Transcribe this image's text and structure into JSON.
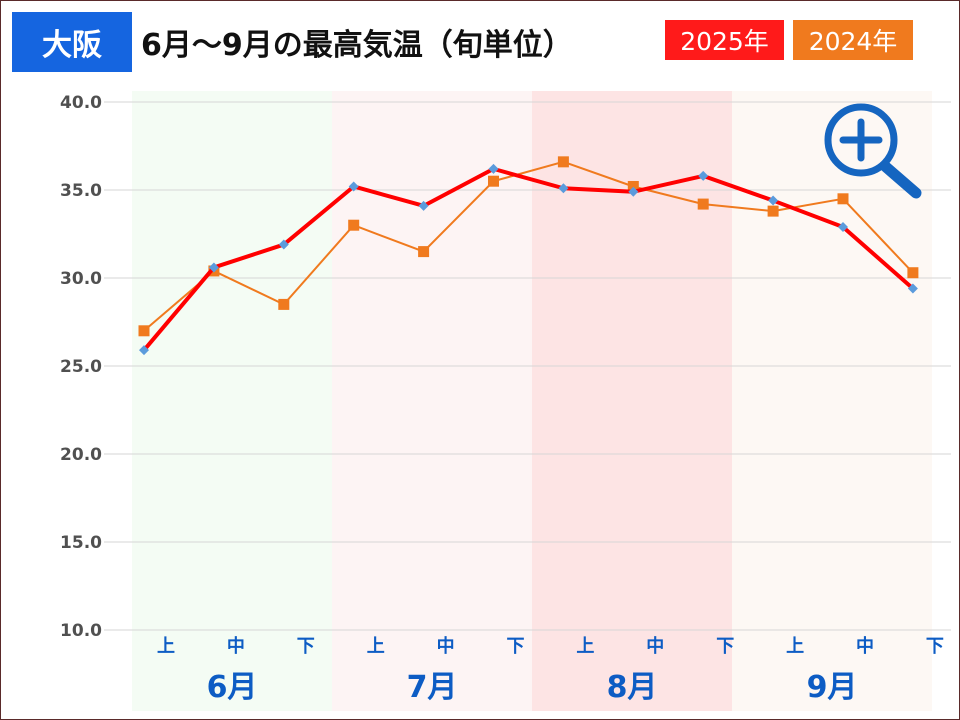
{
  "header": {
    "city": "大阪",
    "title": "6月〜9月の最高気温（旬単位）"
  },
  "colors": {
    "city_badge": "#1565e0",
    "series_2025": "#ff0000",
    "series_2025_marker": "#5b9bdc",
    "series_2024": "#f07a1e",
    "band_june": "#f4fcf4",
    "band_july": "#fdf4f4",
    "band_august": "#fde4e4",
    "band_september": "#fdf8f4",
    "axis_label": "#0d5cc4"
  },
  "icons": {
    "zoom": "zoom-in-magnifier-icon"
  },
  "chart_data": {
    "type": "line",
    "title": "6月〜9月の最高気温（旬単位）",
    "categories": [
      "上",
      "中",
      "下",
      "上",
      "中",
      "下",
      "上",
      "中",
      "下",
      "上",
      "中",
      "下"
    ],
    "groups": [
      {
        "label": "6月",
        "count": 3
      },
      {
        "label": "7月",
        "count": 3
      },
      {
        "label": "8月",
        "count": 3
      },
      {
        "label": "9月",
        "count": 3
      }
    ],
    "series": [
      {
        "name": "2025年",
        "values": [
          25.9,
          30.6,
          31.9,
          35.2,
          34.1,
          36.2,
          35.1,
          34.9,
          35.8,
          34.4,
          32.9,
          29.4
        ]
      },
      {
        "name": "2024年",
        "values": [
          27.0,
          30.4,
          28.5,
          33.0,
          31.5,
          35.5,
          36.6,
          35.2,
          34.2,
          33.8,
          34.5,
          30.3
        ]
      }
    ],
    "yticks": [
      "10.0",
      "15.0",
      "20.0",
      "25.0",
      "30.0",
      "35.0",
      "40.0"
    ],
    "ylim": [
      10,
      40
    ],
    "grid": true,
    "legend_position": "top-right"
  }
}
